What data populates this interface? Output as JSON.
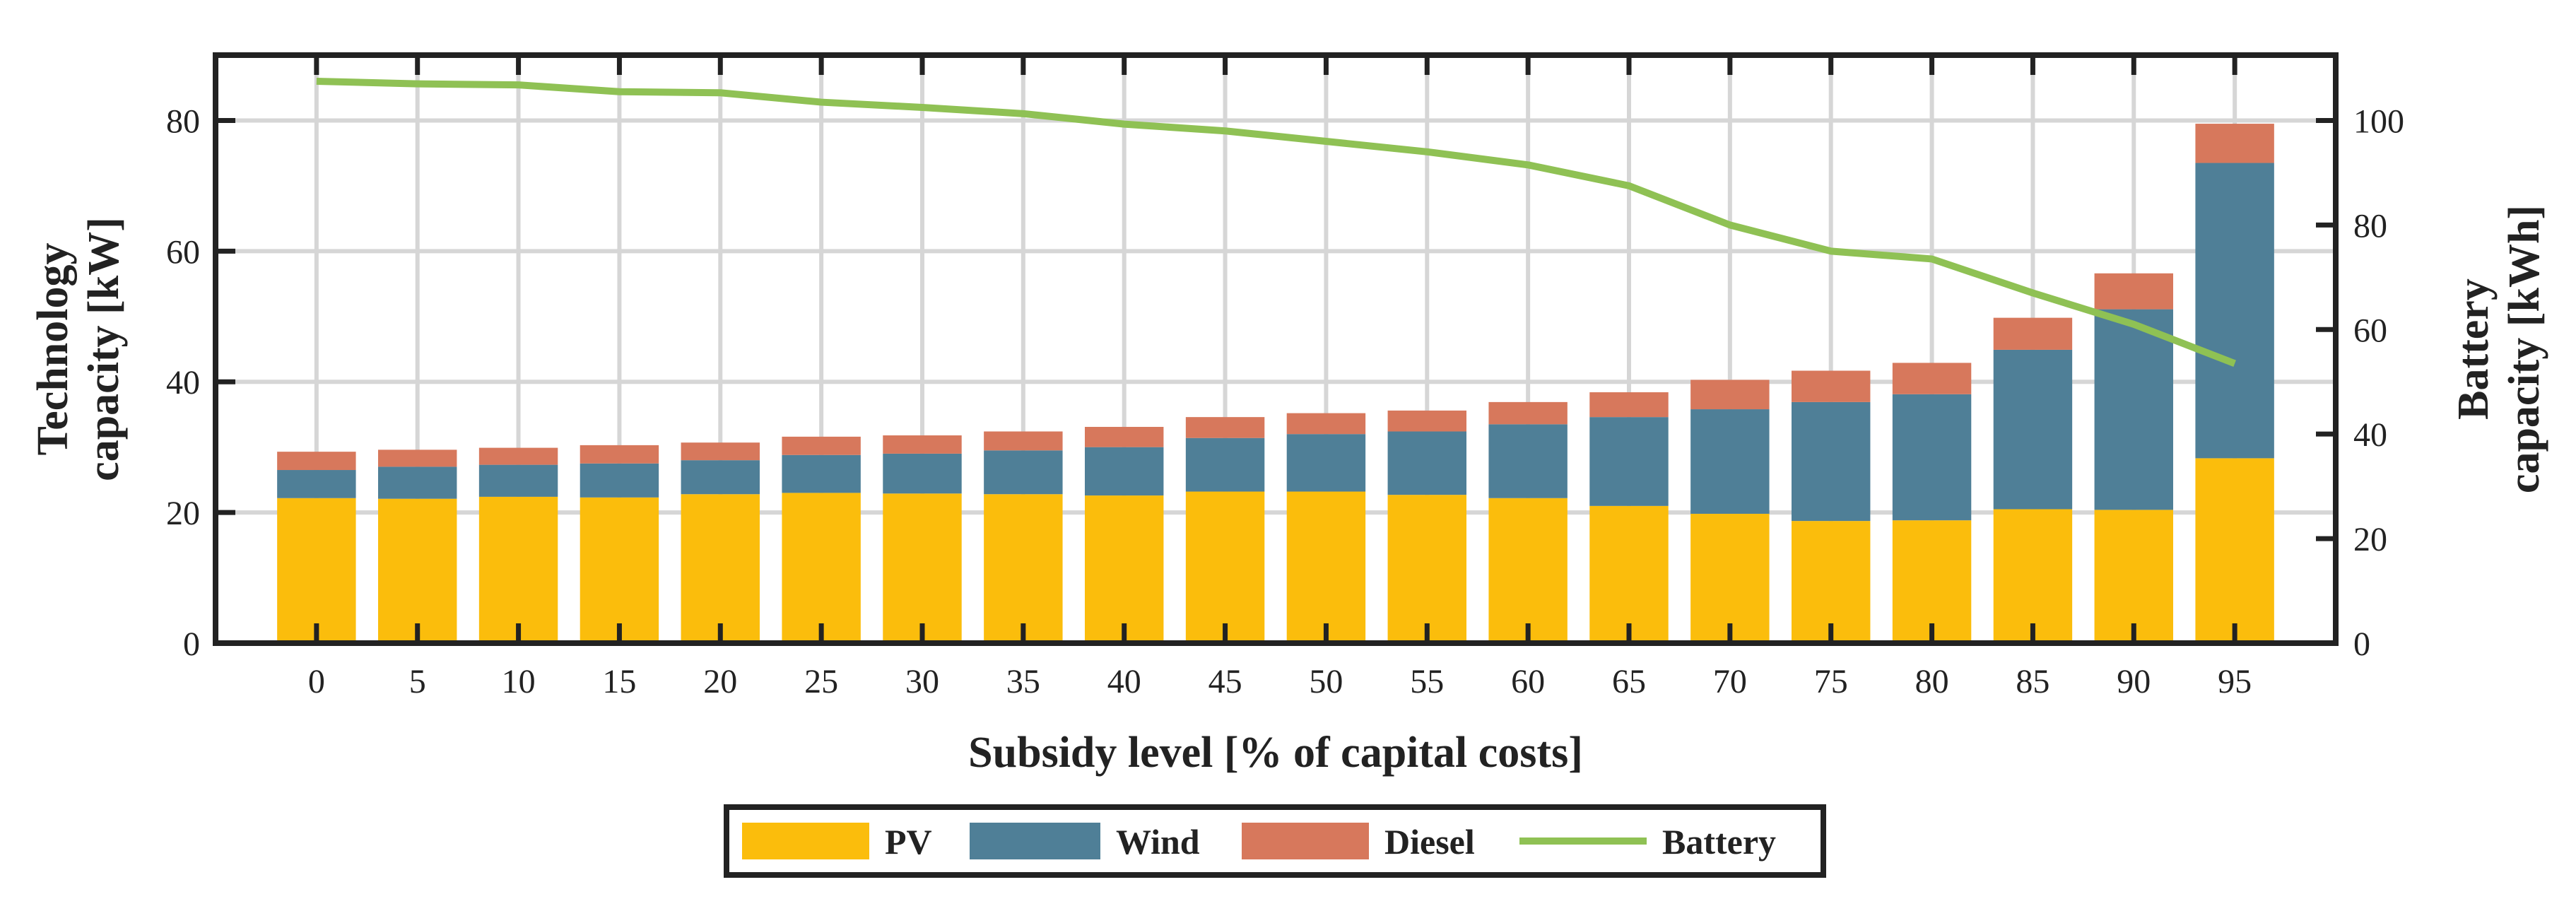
{
  "chart_data": {
    "type": "bar",
    "stacked": true,
    "categories": [
      "0",
      "5",
      "10",
      "15",
      "20",
      "25",
      "30",
      "35",
      "40",
      "45",
      "50",
      "55",
      "60",
      "65",
      "70",
      "75",
      "80",
      "85",
      "90",
      "95"
    ],
    "series": [
      {
        "name": "PV",
        "axis": "left",
        "color": "#fbbd0c",
        "values": [
          22.2,
          22.1,
          22.4,
          22.3,
          22.8,
          23.0,
          22.9,
          22.8,
          22.6,
          23.2,
          23.2,
          22.7,
          22.2,
          21.0,
          19.8,
          18.7,
          18.8,
          20.5,
          20.4,
          28.3
        ]
      },
      {
        "name": "Wind",
        "axis": "left",
        "color": "#4f7f97",
        "values": [
          4.3,
          4.9,
          4.9,
          5.2,
          5.2,
          5.8,
          6.1,
          6.7,
          7.4,
          8.2,
          8.8,
          9.7,
          11.3,
          13.6,
          16.0,
          18.2,
          19.3,
          24.4,
          30.7,
          45.2
        ]
      },
      {
        "name": "Diesel",
        "axis": "left",
        "color": "#d7785c",
        "values": [
          2.8,
          2.6,
          2.6,
          2.8,
          2.7,
          2.8,
          2.8,
          2.9,
          3.1,
          3.2,
          3.2,
          3.2,
          3.4,
          3.8,
          4.5,
          4.8,
          4.8,
          4.9,
          5.5,
          6.0
        ]
      },
      {
        "name": "Battery",
        "axis": "right",
        "type": "line",
        "color": "#8fc154",
        "values": [
          107.5,
          107.0,
          106.8,
          105.5,
          105.3,
          103.5,
          102.5,
          101.3,
          99.3,
          98.0,
          96.0,
          94.0,
          91.5,
          87.5,
          80.0,
          75.0,
          73.5,
          67.0,
          61.0,
          53.5
        ]
      }
    ],
    "xlabel": "Subsidy level [% of capital costs]",
    "ylabel": "Technology capacity [kW]",
    "ylabel_lines": [
      "Technology",
      "capacity [kW]"
    ],
    "y2label": "Battery capacity [kWh]",
    "y2label_lines": [
      "Battery",
      "capacity [kWh]"
    ],
    "ylim": [
      0,
      90
    ],
    "y2lim": [
      0,
      112.5
    ],
    "yticks": [
      0,
      20,
      40,
      60,
      80
    ],
    "y2ticks": [
      0,
      20,
      40,
      60,
      80,
      100
    ],
    "grid": true,
    "legend": {
      "position": "bottom-center",
      "entries": [
        "PV",
        "Wind",
        "Diesel",
        "Battery"
      ]
    }
  }
}
